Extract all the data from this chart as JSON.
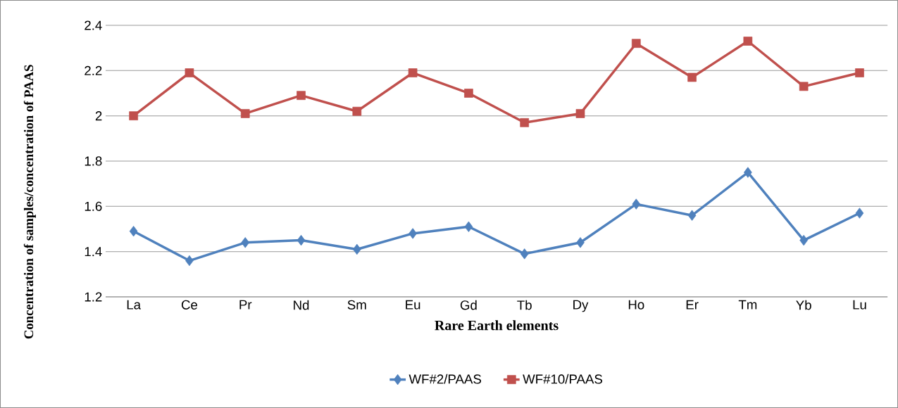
{
  "chart_data": {
    "type": "line",
    "xlabel": "Rare Earth elements",
    "ylabel": "Concentration of samples/concentration of PAAS",
    "categories": [
      "La",
      "Ce",
      "Pr",
      "Nd",
      "Sm",
      "Eu",
      "Gd",
      "Tb",
      "Dy",
      "Ho",
      "Er",
      "Tm",
      "Yb",
      "Lu"
    ],
    "series": [
      {
        "name": "WF#2/PAAS",
        "color": "#4f81bd",
        "marker": "diamond",
        "values": [
          1.49,
          1.36,
          1.44,
          1.45,
          1.41,
          1.48,
          1.51,
          1.39,
          1.44,
          1.61,
          1.56,
          1.75,
          1.45,
          1.57
        ]
      },
      {
        "name": "WF#10/PAAS",
        "color": "#c0504d",
        "marker": "square",
        "values": [
          2.0,
          2.19,
          2.01,
          2.09,
          2.02,
          2.19,
          2.1,
          1.97,
          2.01,
          2.32,
          2.17,
          2.33,
          2.13,
          2.19
        ]
      }
    ],
    "ylim": [
      1.2,
      2.4
    ],
    "yticks": [
      1.2,
      1.4,
      1.6,
      1.8,
      2,
      2.2,
      2.4
    ],
    "grid": "y",
    "legend": "bottom",
    "line_style": "solid"
  }
}
